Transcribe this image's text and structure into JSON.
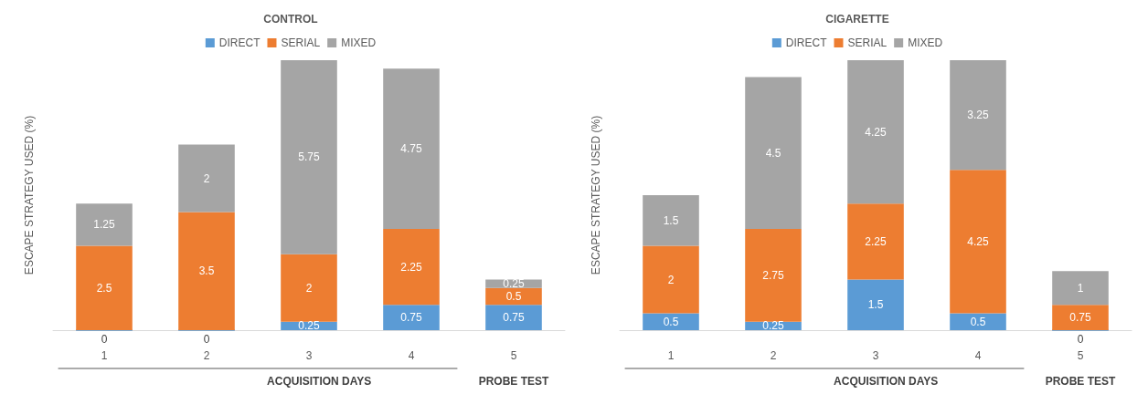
{
  "chart_data": [
    {
      "type": "bar",
      "title": "CONTROL",
      "ylabel": "ESCAPE STRATEGY USED (%)",
      "xlabel": "ACQUISITION DAYS",
      "annotations": [
        "PROBE TEST"
      ],
      "categories": [
        "1",
        "2",
        "3",
        "4",
        "5"
      ],
      "stacked": true,
      "data_labels": true,
      "legend": "top",
      "series": [
        {
          "name": "DIRECT",
          "color": "#5b9bd5",
          "values": [
            0,
            0,
            0.25,
            0.75,
            0.75
          ]
        },
        {
          "name": "SERIAL",
          "color": "#ed7d31",
          "values": [
            2.5,
            3.5,
            2,
            2.25,
            0.5
          ]
        },
        {
          "name": "MIXED",
          "color": "#a5a5a5",
          "values": [
            1.25,
            2,
            5.75,
            4.75,
            0.25
          ]
        }
      ]
    },
    {
      "type": "bar",
      "title": "CIGARETTE",
      "ylabel": "ESCAPE STRATEGY USED (%)",
      "xlabel": "ACQUISITION DAYS",
      "annotations": [
        "PROBE TEST"
      ],
      "categories": [
        "1",
        "2",
        "3",
        "4",
        "5"
      ],
      "stacked": true,
      "data_labels": true,
      "legend": "top",
      "series": [
        {
          "name": "DIRECT",
          "color": "#5b9bd5",
          "values": [
            0.5,
            0.25,
            1.5,
            0.5,
            0
          ]
        },
        {
          "name": "SERIAL",
          "color": "#ed7d31",
          "values": [
            2,
            2.75,
            2.25,
            4.25,
            0.75
          ]
        },
        {
          "name": "MIXED",
          "color": "#a5a5a5",
          "values": [
            1.5,
            4.5,
            4.25,
            3.25,
            1
          ]
        }
      ]
    }
  ]
}
